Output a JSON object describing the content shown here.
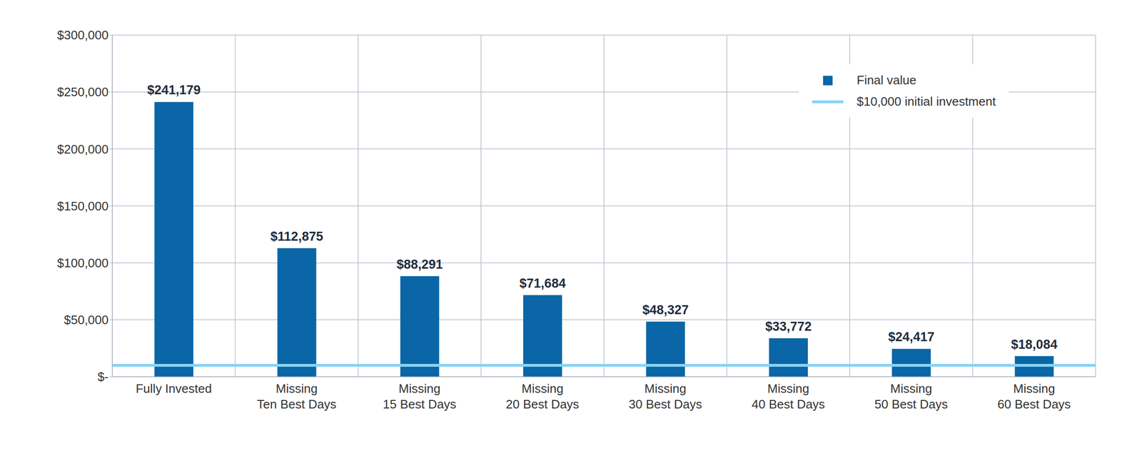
{
  "chart_data": {
    "type": "bar",
    "categories": [
      "Fully Invested",
      "Missing\nTen Best Days",
      "Missing\n15 Best Days",
      "Missing\n20 Best Days",
      "Missing\n30 Best Days",
      "Missing\n40 Best Days",
      "Missing\n50 Best Days",
      "Missing\n60 Best Days"
    ],
    "series": [
      {
        "name": "Final value",
        "color": "#0a66a6",
        "values": [
          241179,
          112875,
          88291,
          71684,
          48327,
          33772,
          24417,
          18084
        ],
        "value_labels": [
          "$241,179",
          "$112,875",
          "$88,291",
          "$71,684",
          "$48,327",
          "$33,772",
          "$24,417",
          "$18,084"
        ]
      }
    ],
    "reference_line": {
      "name": "$10,000 initial investment",
      "value": 10000,
      "color": "#87d3f5"
    },
    "ylim": [
      0,
      300000
    ],
    "yticks": [
      {
        "value": 0,
        "label": "$-"
      },
      {
        "value": 50000,
        "label": "$50,000"
      },
      {
        "value": 100000,
        "label": "$100,000"
      },
      {
        "value": 150000,
        "label": "$150,000"
      },
      {
        "value": 200000,
        "label": "$200,000"
      },
      {
        "value": 250000,
        "label": "$250,000"
      },
      {
        "value": 300000,
        "label": "$300,000"
      }
    ],
    "grid": true,
    "data_labels": true,
    "legend": "upper right"
  }
}
